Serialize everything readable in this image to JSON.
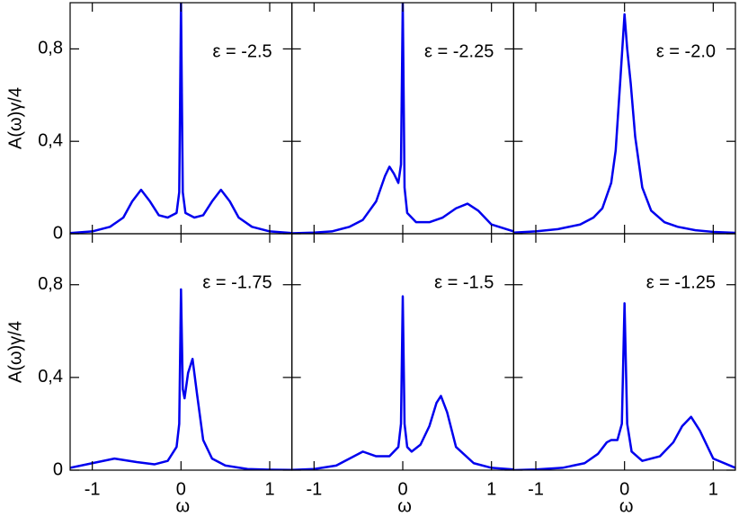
{
  "chart_data": [
    {
      "type": "line",
      "annotation": "ε = -2.5",
      "ylabel": "A(ω)γ/4",
      "color": "#0000ee",
      "xlim": [
        -1.25,
        1.25
      ],
      "ylim": [
        0,
        1
      ],
      "xticks": [
        -1,
        0,
        1
      ],
      "yticks": [
        0,
        {
          "value": 0.4,
          "label": "0,4"
        },
        {
          "value": 0.8,
          "label": "0,8"
        }
      ],
      "x": [
        -1.25,
        -1,
        -0.8,
        -0.65,
        -0.55,
        -0.45,
        -0.35,
        -0.25,
        -0.15,
        -0.05,
        -0.02,
        0,
        0.02,
        0.05,
        0.15,
        0.25,
        0.35,
        0.45,
        0.55,
        0.65,
        0.8,
        1,
        1.25
      ],
      "values": [
        0.003,
        0.01,
        0.03,
        0.07,
        0.14,
        0.19,
        0.14,
        0.08,
        0.07,
        0.09,
        0.18,
        1.0,
        0.18,
        0.09,
        0.07,
        0.08,
        0.14,
        0.19,
        0.14,
        0.07,
        0.03,
        0.01,
        0.003
      ]
    },
    {
      "type": "line",
      "annotation": "ε = -2.25",
      "color": "#0000ee",
      "xlim": [
        -1.25,
        1.25
      ],
      "ylim": [
        0,
        1
      ],
      "xticks": [
        -1,
        0,
        1
      ],
      "yticks": [
        0,
        {
          "value": 0.4,
          "label": "0,4"
        },
        {
          "value": 0.8,
          "label": "0,8"
        }
      ],
      "x": [
        -1.25,
        -1,
        -0.8,
        -0.6,
        -0.45,
        -0.3,
        -0.2,
        -0.15,
        -0.1,
        -0.05,
        -0.02,
        0,
        0.02,
        0.05,
        0.15,
        0.3,
        0.45,
        0.6,
        0.73,
        0.85,
        1,
        1.25
      ],
      "values": [
        0.002,
        0.005,
        0.01,
        0.03,
        0.06,
        0.14,
        0.25,
        0.29,
        0.26,
        0.22,
        0.3,
        1.0,
        0.2,
        0.09,
        0.05,
        0.05,
        0.07,
        0.11,
        0.13,
        0.1,
        0.04,
        0.01
      ]
    },
    {
      "type": "line",
      "annotation": "ε = -2.0",
      "color": "#0000ee",
      "xlim": [
        -1.25,
        1.25
      ],
      "ylim": [
        0,
        1
      ],
      "xticks": [
        -1,
        0,
        1
      ],
      "yticks": [
        0,
        {
          "value": 0.4,
          "label": "0,4"
        },
        {
          "value": 0.8,
          "label": "0,8"
        }
      ],
      "x": [
        -1.25,
        -1,
        -0.75,
        -0.5,
        -0.35,
        -0.25,
        -0.15,
        -0.1,
        -0.05,
        0,
        0.03,
        0.07,
        0.12,
        0.2,
        0.3,
        0.45,
        0.6,
        0.8,
        1,
        1.25
      ],
      "values": [
        0.005,
        0.01,
        0.02,
        0.04,
        0.07,
        0.11,
        0.22,
        0.36,
        0.65,
        0.95,
        0.8,
        0.65,
        0.42,
        0.2,
        0.1,
        0.05,
        0.03,
        0.015,
        0.008,
        0.004
      ]
    },
    {
      "type": "line",
      "annotation": "ε = -1.75",
      "ylabel": "A(ω)γ/4",
      "xlabel": "ω",
      "color": "#0000ee",
      "xlim": [
        -1.25,
        1.25
      ],
      "ylim": [
        0,
        1.02
      ],
      "xticks": [
        -1,
        0,
        1
      ],
      "yticks": [
        0,
        {
          "value": 0.4,
          "label": "0,4"
        },
        {
          "value": 0.8,
          "label": "0,8"
        }
      ],
      "x": [
        -1.25,
        -1,
        -0.75,
        -0.5,
        -0.3,
        -0.15,
        -0.05,
        -0.02,
        0,
        0.02,
        0.04,
        0.08,
        0.13,
        0.18,
        0.25,
        0.35,
        0.5,
        0.75,
        1,
        1.25
      ],
      "values": [
        0.01,
        0.03,
        0.05,
        0.035,
        0.025,
        0.04,
        0.1,
        0.2,
        0.78,
        0.35,
        0.31,
        0.42,
        0.48,
        0.33,
        0.13,
        0.05,
        0.02,
        0.005,
        0.002,
        0.001
      ]
    },
    {
      "type": "line",
      "annotation": "ε = -1.5",
      "xlabel": "ω",
      "color": "#0000ee",
      "xlim": [
        -1.25,
        1.25
      ],
      "ylim": [
        0,
        1.02
      ],
      "xticks": [
        -1,
        0,
        1
      ],
      "yticks": [
        0,
        {
          "value": 0.4,
          "label": "0,4"
        },
        {
          "value": 0.8,
          "label": "0,8"
        }
      ],
      "x": [
        -1.25,
        -1,
        -0.75,
        -0.6,
        -0.45,
        -0.3,
        -0.15,
        -0.05,
        -0.02,
        0,
        0.02,
        0.05,
        0.1,
        0.2,
        0.3,
        0.38,
        0.43,
        0.5,
        0.6,
        0.8,
        1,
        1.25
      ],
      "values": [
        0.001,
        0.005,
        0.02,
        0.05,
        0.08,
        0.06,
        0.06,
        0.1,
        0.2,
        0.75,
        0.2,
        0.1,
        0.08,
        0.11,
        0.19,
        0.29,
        0.32,
        0.25,
        0.1,
        0.03,
        0.01,
        0.003
      ]
    },
    {
      "type": "line",
      "annotation": "ε = -1.25",
      "xlabel": "ω",
      "color": "#0000ee",
      "xlim": [
        -1.25,
        1.25
      ],
      "ylim": [
        0,
        1.02
      ],
      "xticks": [
        -1,
        0,
        1
      ],
      "yticks": [
        0,
        {
          "value": 0.4,
          "label": "0,4"
        },
        {
          "value": 0.8,
          "label": "0,8"
        }
      ],
      "x": [
        -1.25,
        -1,
        -0.7,
        -0.45,
        -0.3,
        -0.2,
        -0.15,
        -0.08,
        -0.03,
        0,
        0.03,
        0.08,
        0.2,
        0.4,
        0.55,
        0.65,
        0.75,
        0.85,
        1,
        1.25
      ],
      "values": [
        0.0,
        0.003,
        0.01,
        0.03,
        0.07,
        0.12,
        0.13,
        0.13,
        0.2,
        0.72,
        0.2,
        0.08,
        0.04,
        0.06,
        0.12,
        0.19,
        0.23,
        0.17,
        0.05,
        0.01
      ]
    }
  ]
}
